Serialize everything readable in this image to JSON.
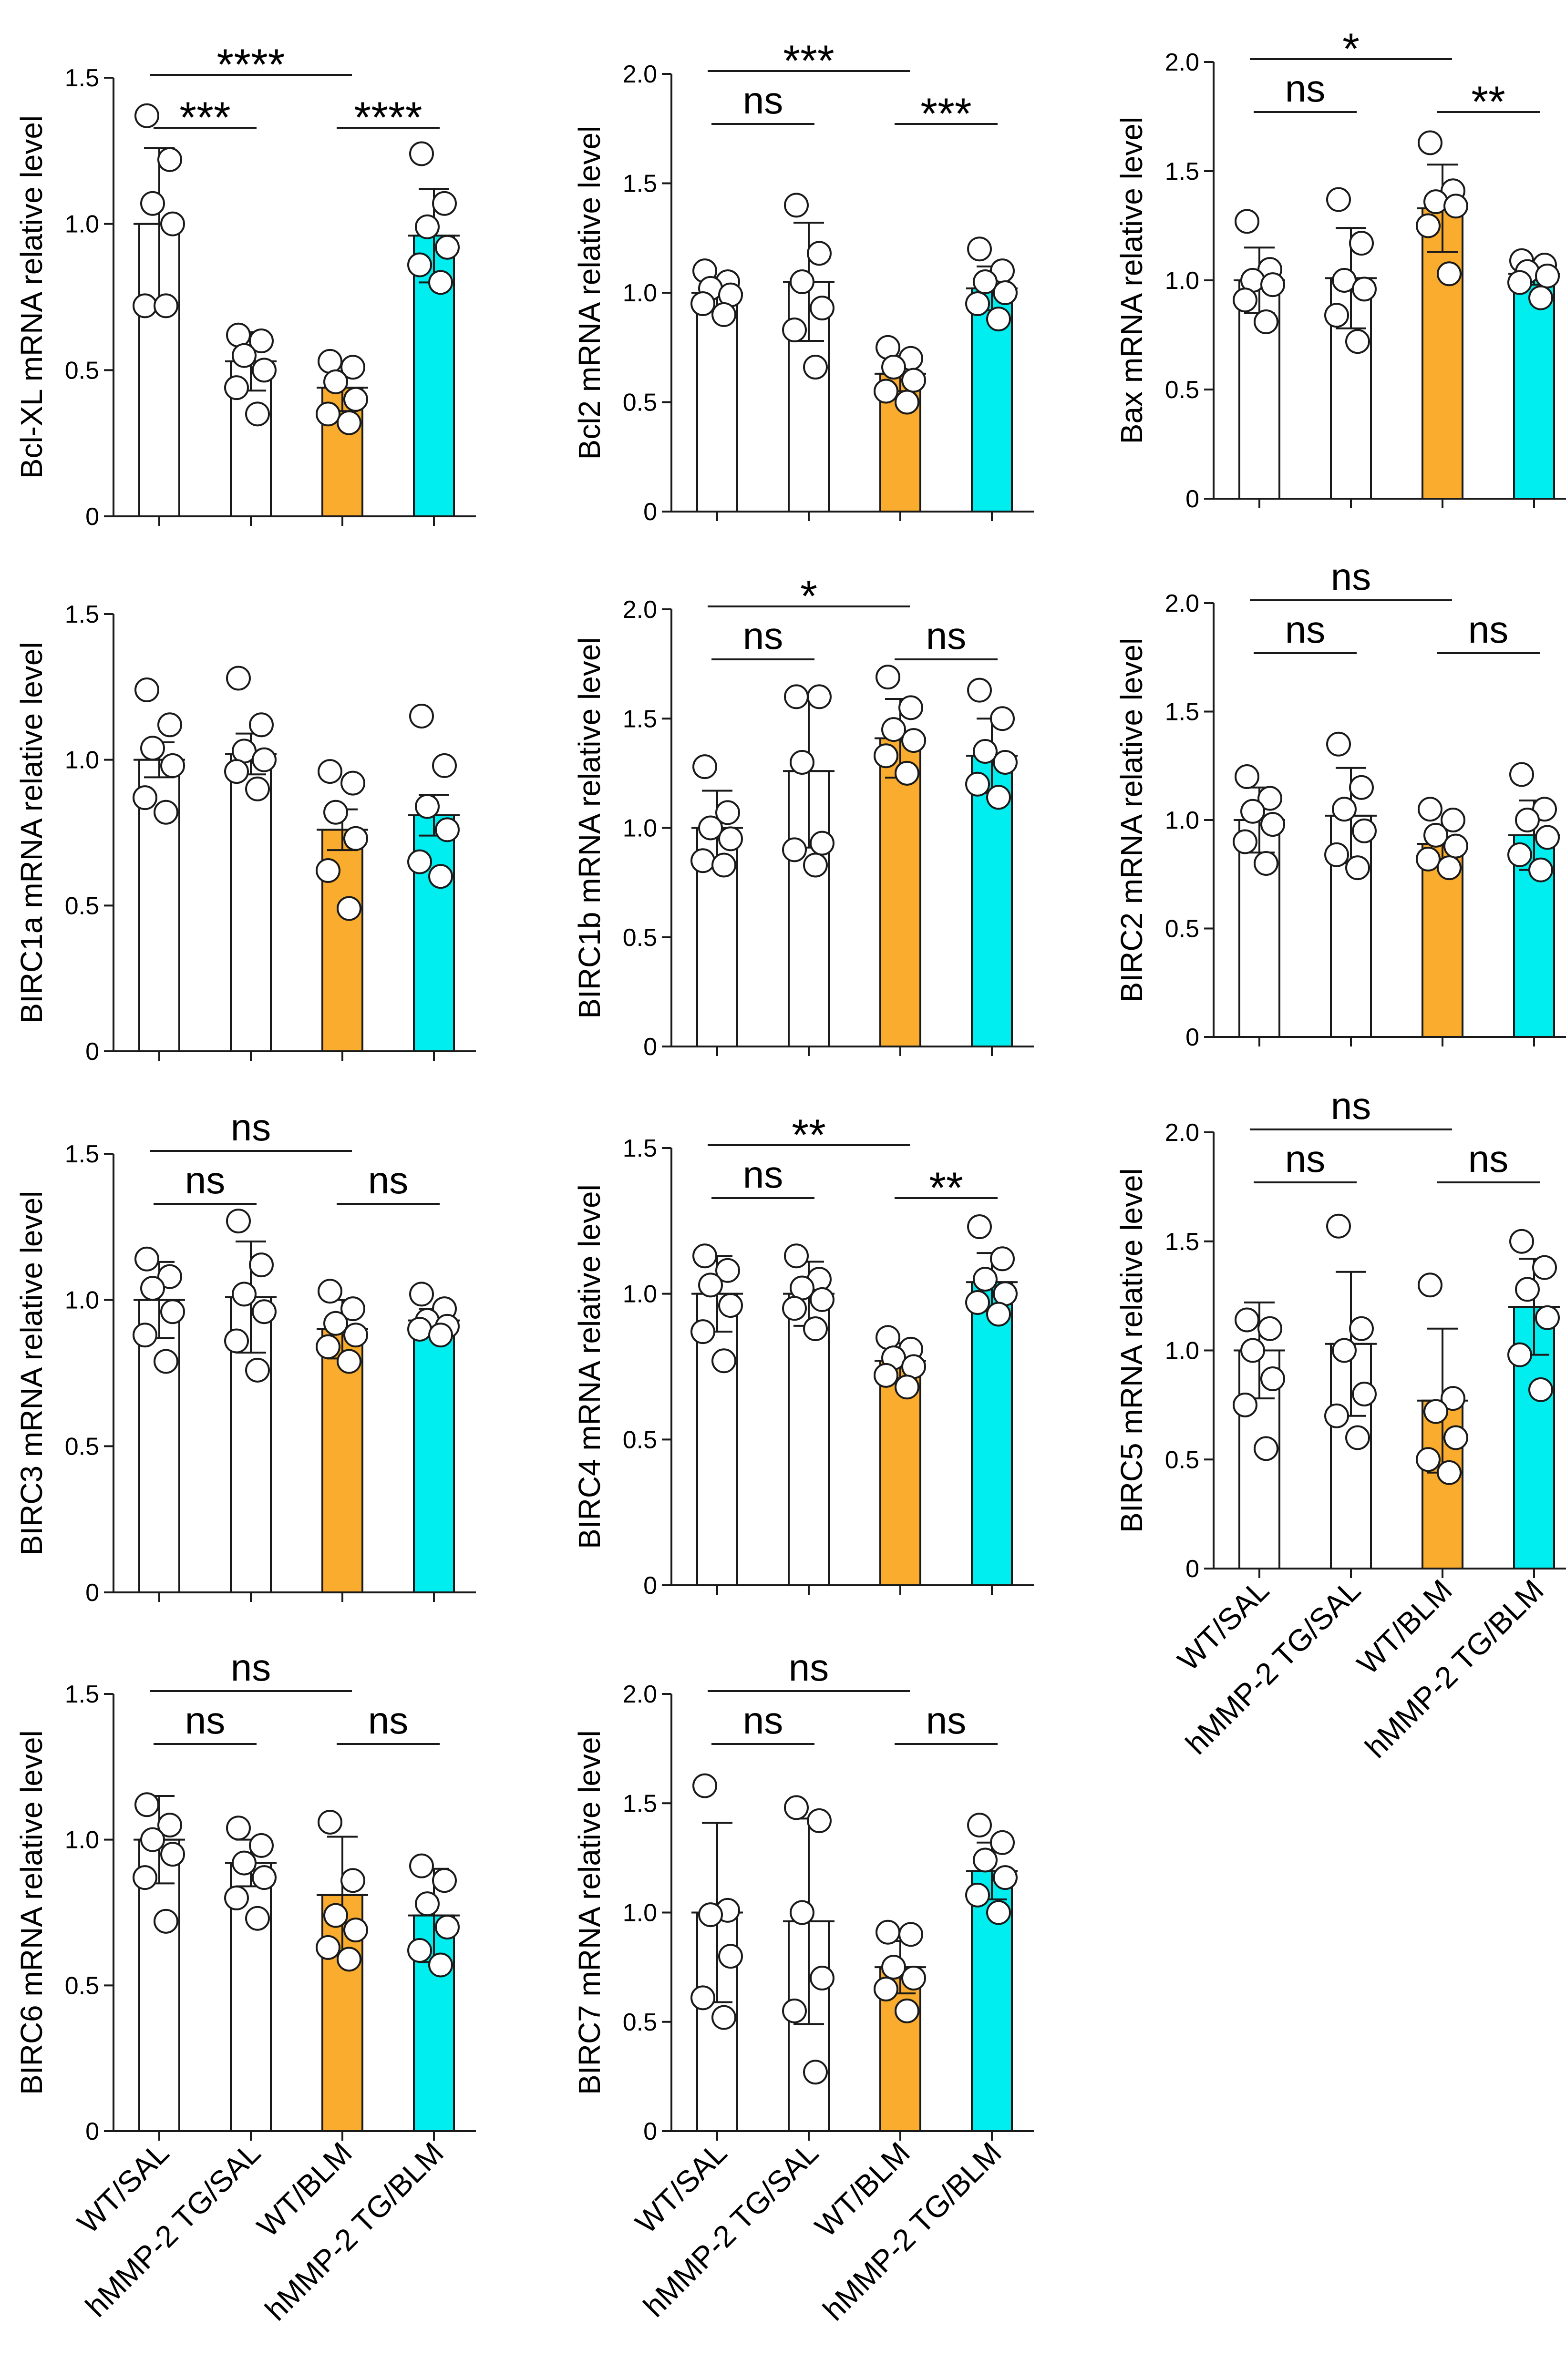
{
  "categories": [
    "WT/SAL",
    "hMMP-2 TG/SAL",
    "WT/BLM",
    "hMMP-2 TG/BLM"
  ],
  "colors": {
    "WT/SAL": "#ffffff",
    "hMMP-2 TG/SAL": "#ffffff",
    "WT/BLM": "#f9ac2d",
    "hMMP-2 TG/BLM": "#00eef0"
  },
  "chart_data": [
    {
      "type": "bar",
      "title": "",
      "xlabel": "",
      "ylabel": "Bcl-XL mRNA relative level",
      "ylim": [
        0,
        1.5
      ],
      "yticks": [
        "0",
        "0.5",
        "1.0",
        "1.5"
      ],
      "categories": [
        "WT/SAL",
        "hMMP-2 TG/SAL",
        "WT/BLM",
        "hMMP-2 TG/BLM"
      ],
      "values": [
        1.0,
        0.53,
        0.44,
        0.96
      ],
      "sd": [
        0.26,
        0.1,
        0.08,
        0.16
      ],
      "points": [
        [
          1.37,
          1.22,
          1.07,
          1.0,
          0.72,
          0.72
        ],
        [
          0.62,
          0.6,
          0.55,
          0.5,
          0.44,
          0.35
        ],
        [
          0.53,
          0.51,
          0.46,
          0.4,
          0.35,
          0.32
        ],
        [
          1.24,
          1.07,
          0.99,
          0.92,
          0.86,
          0.8
        ]
      ],
      "significance": [
        {
          "from": 0,
          "to": 2,
          "label": "****"
        },
        {
          "from": 0,
          "to": 1,
          "label": "***"
        },
        {
          "from": 2,
          "to": 3,
          "label": "****"
        }
      ]
    },
    {
      "type": "bar",
      "title": "",
      "xlabel": "",
      "ylabel": "Bcl2 mRNA relative level",
      "ylim": [
        0,
        2.0
      ],
      "yticks": [
        "0",
        "0.5",
        "1.0",
        "1.5",
        "2.0"
      ],
      "categories": [
        "WT/SAL",
        "hMMP-2 TG/SAL",
        "WT/BLM",
        "hMMP-2 TG/BLM"
      ],
      "values": [
        1.0,
        1.05,
        0.63,
        1.02
      ],
      "sd": [
        0.07,
        0.27,
        0.08,
        0.1
      ],
      "points": [
        [
          1.1,
          1.05,
          1.02,
          0.99,
          0.95,
          0.9
        ],
        [
          1.4,
          1.18,
          1.05,
          0.93,
          0.83,
          0.66
        ],
        [
          0.75,
          0.7,
          0.66,
          0.6,
          0.55,
          0.5
        ],
        [
          1.2,
          1.1,
          1.05,
          1.0,
          0.95,
          0.88
        ]
      ],
      "significance": [
        {
          "from": 0,
          "to": 2,
          "label": "***"
        },
        {
          "from": 0,
          "to": 1,
          "label": "ns"
        },
        {
          "from": 2,
          "to": 3,
          "label": "***"
        }
      ]
    },
    {
      "type": "bar",
      "title": "",
      "xlabel": "",
      "ylabel": "Bax mRNA relative level",
      "ylim": [
        0,
        2.0
      ],
      "yticks": [
        "0",
        "0.5",
        "1.0",
        "1.5",
        "2.0"
      ],
      "categories": [
        "WT/SAL",
        "hMMP-2 TG/SAL",
        "WT/BLM",
        "hMMP-2 TG/BLM"
      ],
      "values": [
        1.0,
        1.01,
        1.33,
        1.03
      ],
      "sd": [
        0.15,
        0.23,
        0.2,
        0.05
      ],
      "points": [
        [
          1.27,
          1.05,
          1.0,
          0.98,
          0.91,
          0.81
        ],
        [
          1.37,
          1.17,
          1.0,
          0.96,
          0.84,
          0.72
        ],
        [
          1.63,
          1.41,
          1.36,
          1.34,
          1.25,
          1.03
        ],
        [
          1.09,
          1.07,
          1.04,
          1.02,
          0.99,
          0.92
        ]
      ],
      "significance": [
        {
          "from": 0,
          "to": 2,
          "label": "*"
        },
        {
          "from": 0,
          "to": 1,
          "label": "ns"
        },
        {
          "from": 2,
          "to": 3,
          "label": "**"
        }
      ]
    },
    {
      "type": "bar",
      "title": "",
      "xlabel": "",
      "ylabel": "BIRC1a mRNA relative level",
      "ylim": [
        0,
        1.5
      ],
      "yticks": [
        "0",
        "0.5",
        "1.0",
        "1.5"
      ],
      "categories": [
        "WT/SAL",
        "hMMP-2 TG/SAL",
        "WT/BLM",
        "hMMP-2 TG/BLM"
      ],
      "values": [
        1.0,
        1.02,
        0.76,
        0.81
      ],
      "sd": [
        0.06,
        0.07,
        0.07,
        0.07
      ],
      "points": [
        [
          1.24,
          1.12,
          1.04,
          0.98,
          0.87,
          0.82
        ],
        [
          1.28,
          1.12,
          1.03,
          1.0,
          0.96,
          0.9
        ],
        [
          0.96,
          0.92,
          0.82,
          0.73,
          0.62,
          0.49
        ],
        [
          1.15,
          0.98,
          0.84,
          0.76,
          0.65,
          0.6
        ]
      ],
      "significance": []
    },
    {
      "type": "bar",
      "title": "",
      "xlabel": "",
      "ylabel": "BIRC1b mRNA relative level",
      "ylim": [
        0,
        2.0
      ],
      "yticks": [
        "0",
        "0.5",
        "1.0",
        "1.5",
        "2.0"
      ],
      "categories": [
        "WT/SAL",
        "hMMP-2 TG/SAL",
        "WT/BLM",
        "hMMP-2 TG/BLM"
      ],
      "values": [
        1.0,
        1.26,
        1.41,
        1.33
      ],
      "sd": [
        0.17,
        0.35,
        0.18,
        0.17
      ],
      "points": [
        [
          1.28,
          1.07,
          1.0,
          0.95,
          0.85,
          0.83
        ],
        [
          1.6,
          1.6,
          1.3,
          0.93,
          0.9,
          0.83
        ],
        [
          1.69,
          1.55,
          1.45,
          1.4,
          1.33,
          1.25
        ],
        [
          1.63,
          1.5,
          1.35,
          1.3,
          1.2,
          1.14
        ]
      ],
      "significance": [
        {
          "from": 0,
          "to": 2,
          "label": "*"
        },
        {
          "from": 0,
          "to": 1,
          "label": "ns"
        },
        {
          "from": 2,
          "to": 3,
          "label": "ns"
        }
      ]
    },
    {
      "type": "bar",
      "title": "",
      "xlabel": "",
      "ylabel": "BIRC2 mRNA relative level",
      "ylim": [
        0,
        2.0
      ],
      "yticks": [
        "0",
        "0.5",
        "1.0",
        "1.5",
        "2.0"
      ],
      "categories": [
        "WT/SAL",
        "hMMP-2 TG/SAL",
        "WT/BLM",
        "hMMP-2 TG/BLM"
      ],
      "values": [
        1.0,
        1.02,
        0.89,
        0.93
      ],
      "sd": [
        0.15,
        0.22,
        0.07,
        0.16
      ],
      "points": [
        [
          1.2,
          1.1,
          1.04,
          0.98,
          0.9,
          0.8
        ],
        [
          1.35,
          1.15,
          1.05,
          0.95,
          0.84,
          0.78
        ],
        [
          1.05,
          1.0,
          0.93,
          0.88,
          0.82,
          0.78
        ],
        [
          1.21,
          1.05,
          1.0,
          0.92,
          0.84,
          0.77
        ]
      ],
      "significance": [
        {
          "from": 0,
          "to": 2,
          "label": "ns"
        },
        {
          "from": 0,
          "to": 1,
          "label": "ns"
        },
        {
          "from": 2,
          "to": 3,
          "label": "ns"
        }
      ]
    },
    {
      "type": "bar",
      "title": "",
      "xlabel": "",
      "ylabel": "BIRC3 mRNA relative level",
      "ylim": [
        0,
        1.5
      ],
      "yticks": [
        "0",
        "0.5",
        "1.0",
        "1.5"
      ],
      "categories": [
        "WT/SAL",
        "hMMP-2 TG/SAL",
        "WT/BLM",
        "hMMP-2 TG/BLM"
      ],
      "values": [
        1.0,
        1.01,
        0.9,
        0.93
      ],
      "sd": [
        0.13,
        0.19,
        0.1,
        0.04
      ],
      "points": [
        [
          1.14,
          1.08,
          1.04,
          0.96,
          0.88,
          0.79
        ],
        [
          1.27,
          1.12,
          1.02,
          0.96,
          0.86,
          0.76
        ],
        [
          1.03,
          0.97,
          0.92,
          0.88,
          0.84,
          0.79
        ],
        [
          1.02,
          0.97,
          0.93,
          0.91,
          0.9,
          0.88
        ]
      ],
      "significance": [
        {
          "from": 0,
          "to": 2,
          "label": "ns"
        },
        {
          "from": 0,
          "to": 1,
          "label": "ns"
        },
        {
          "from": 2,
          "to": 3,
          "label": "ns"
        }
      ]
    },
    {
      "type": "bar",
      "title": "",
      "xlabel": "",
      "ylabel": "BIRC4 mRNA relative level",
      "ylim": [
        0,
        1.5
      ],
      "yticks": [
        "0",
        "0.5",
        "1.0",
        "1.5"
      ],
      "categories": [
        "WT/SAL",
        "hMMP-2 TG/SAL",
        "WT/BLM",
        "hMMP-2 TG/BLM"
      ],
      "values": [
        1.0,
        1.0,
        0.77,
        1.04
      ],
      "sd": [
        0.13,
        0.11,
        0.06,
        0.1
      ],
      "points": [
        [
          1.13,
          1.08,
          1.03,
          0.96,
          0.87,
          0.77
        ],
        [
          1.13,
          1.05,
          1.02,
          0.98,
          0.95,
          0.88
        ],
        [
          0.85,
          0.81,
          0.78,
          0.75,
          0.72,
          0.68
        ],
        [
          1.23,
          1.12,
          1.05,
          1.0,
          0.97,
          0.93
        ]
      ],
      "significance": [
        {
          "from": 0,
          "to": 2,
          "label": "**"
        },
        {
          "from": 0,
          "to": 1,
          "label": "ns"
        },
        {
          "from": 2,
          "to": 3,
          "label": "**"
        }
      ]
    },
    {
      "type": "bar",
      "title": "",
      "xlabel": "",
      "ylabel": "BIRC5 mRNA relative level",
      "ylim": [
        0,
        2.0
      ],
      "yticks": [
        "0",
        "0.5",
        "1.0",
        "1.5",
        "2.0"
      ],
      "categories": [
        "WT/SAL",
        "hMMP-2 TG/SAL",
        "WT/BLM",
        "hMMP-2 TG/BLM"
      ],
      "values": [
        1.0,
        1.03,
        0.77,
        1.2
      ],
      "sd": [
        0.22,
        0.33,
        0.33,
        0.22
      ],
      "points": [
        [
          1.14,
          1.1,
          1.0,
          0.87,
          0.75,
          0.55
        ],
        [
          1.57,
          1.1,
          1.0,
          0.8,
          0.7,
          0.6
        ],
        [
          1.3,
          0.78,
          0.72,
          0.6,
          0.5,
          0.44
        ],
        [
          1.5,
          1.38,
          1.28,
          1.15,
          0.98,
          0.82
        ]
      ],
      "significance": [
        {
          "from": 0,
          "to": 2,
          "label": "ns"
        },
        {
          "from": 0,
          "to": 1,
          "label": "ns"
        },
        {
          "from": 2,
          "to": 3,
          "label": "ns"
        }
      ]
    },
    {
      "type": "bar",
      "title": "",
      "xlabel": "",
      "ylabel": "BIRC6 mRNA relative level",
      "ylim": [
        0,
        1.5
      ],
      "yticks": [
        "0",
        "0.5",
        "1.0",
        "1.5"
      ],
      "categories": [
        "WT/SAL",
        "hMMP-2 TG/SAL",
        "WT/BLM",
        "hMMP-2 TG/BLM"
      ],
      "values": [
        1.0,
        0.92,
        0.81,
        0.74
      ],
      "sd": [
        0.15,
        0.08,
        0.2,
        0.16
      ],
      "points": [
        [
          1.12,
          1.05,
          1.0,
          0.95,
          0.87,
          0.72
        ],
        [
          1.04,
          0.98,
          0.92,
          0.87,
          0.8,
          0.73
        ],
        [
          1.06,
          0.86,
          0.74,
          0.69,
          0.63,
          0.59
        ],
        [
          0.91,
          0.86,
          0.78,
          0.7,
          0.62,
          0.57
        ]
      ],
      "significance": [
        {
          "from": 0,
          "to": 2,
          "label": "ns"
        },
        {
          "from": 0,
          "to": 1,
          "label": "ns"
        },
        {
          "from": 2,
          "to": 3,
          "label": "ns"
        }
      ]
    },
    {
      "type": "bar",
      "title": "",
      "xlabel": "",
      "ylabel": "BIRC7 mRNA relative level",
      "ylim": [
        0,
        2.0
      ],
      "yticks": [
        "0",
        "0.5",
        "1.0",
        "1.5",
        "2.0"
      ],
      "categories": [
        "WT/SAL",
        "hMMP-2 TG/SAL",
        "WT/BLM",
        "hMMP-2 TG/BLM"
      ],
      "values": [
        1.0,
        0.96,
        0.75,
        1.19
      ],
      "sd": [
        0.41,
        0.47,
        0.12,
        0.13
      ],
      "points": [
        [
          1.58,
          1.01,
          0.99,
          0.8,
          0.61,
          0.52
        ],
        [
          1.48,
          1.42,
          1.0,
          0.7,
          0.55,
          0.27
        ],
        [
          0.91,
          0.9,
          0.75,
          0.7,
          0.65,
          0.55
        ],
        [
          1.4,
          1.32,
          1.24,
          1.16,
          1.08,
          1.0
        ]
      ],
      "significance": [
        {
          "from": 0,
          "to": 2,
          "label": "ns"
        },
        {
          "from": 0,
          "to": 1,
          "label": "ns"
        },
        {
          "from": 2,
          "to": 3,
          "label": "ns"
        }
      ]
    }
  ]
}
